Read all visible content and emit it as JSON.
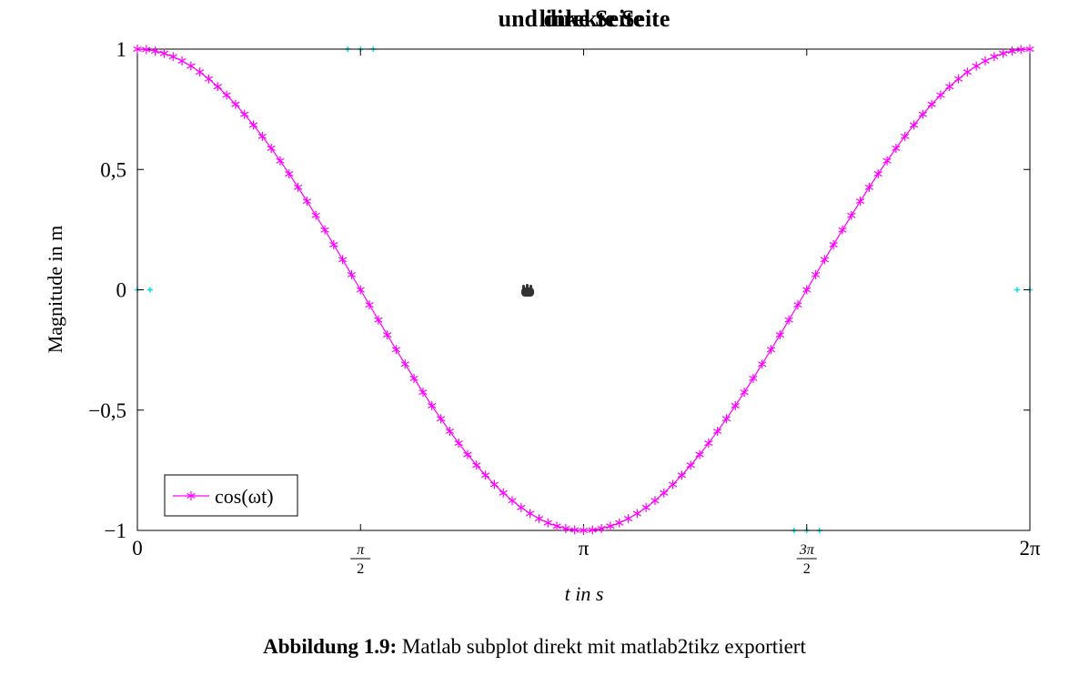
{
  "chart_data": {
    "type": "line",
    "title": "und direkte Seite",
    "title_overlay": "linke Seite",
    "xlabel": "t in s",
    "ylabel": "Magnitude in m",
    "xlim": [
      0,
      6.283185307
    ],
    "ylim": [
      -1,
      1
    ],
    "grid": false,
    "legend_position": "bottom-left",
    "x_ticks": [
      {
        "value": 0,
        "label": "0"
      },
      {
        "value": 1.570796327,
        "label": "π/2"
      },
      {
        "value": 3.141592654,
        "label": "π"
      },
      {
        "value": 4.71238898,
        "label": "3π/2"
      },
      {
        "value": 6.283185307,
        "label": "2π"
      }
    ],
    "y_ticks": [
      {
        "value": 1,
        "label": "1"
      },
      {
        "value": 0.5,
        "label": "0,5"
      },
      {
        "value": 0,
        "label": "0"
      },
      {
        "value": -0.5,
        "label": "−0,5"
      },
      {
        "value": -1,
        "label": "−1"
      }
    ],
    "series": [
      {
        "name": "cos(ωt)",
        "function": "cos",
        "x_start": 0,
        "x_end": 6.283185307,
        "samples": 101,
        "color": "#ff00ff",
        "marker": "asterisk"
      }
    ],
    "ghost_series": {
      "color": "#00e5e5",
      "marker_x": [
        0,
        1.5708,
        4.7124,
        6.2832
      ],
      "marker_y": [
        0,
        1,
        -1,
        0
      ]
    }
  },
  "caption": {
    "label": "Abbildung 1.9:",
    "text": " Matlab subplot direkt mit matlab2tikz exportiert"
  },
  "cursor": {
    "icon": "hand-grab-icon"
  }
}
